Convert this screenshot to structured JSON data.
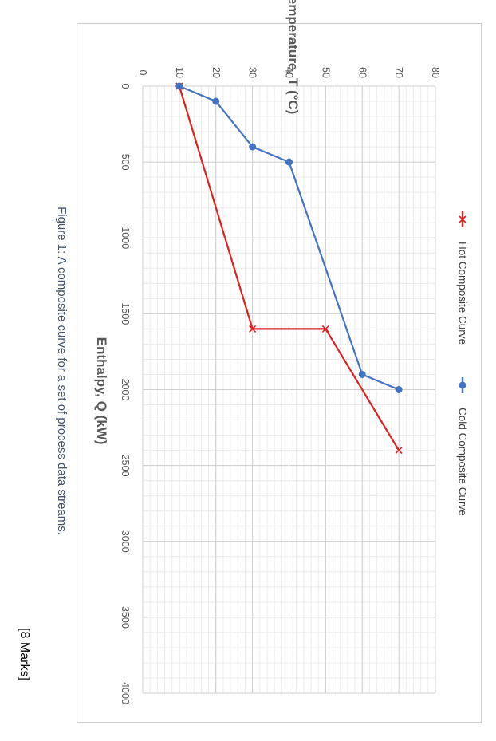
{
  "chart_data": {
    "type": "line",
    "xlabel": "Enthalpy, Q (kW)",
    "ylabel": "Temperature, T (°C)",
    "xlim": [
      0,
      4000
    ],
    "ylim": [
      0,
      80
    ],
    "x_ticks": [
      "0",
      "500",
      "1000",
      "1500",
      "2000",
      "2500",
      "3000",
      "3500",
      "4000"
    ],
    "y_ticks": [
      "0",
      "10",
      "20",
      "30",
      "40",
      "50",
      "60",
      "70",
      "80"
    ],
    "grid": true,
    "legend_position": "top",
    "orientation": "rotated 90° clockwise",
    "series": [
      {
        "name": "Hot Composite Curve",
        "color": "#e02020",
        "marker": "x",
        "points": [
          [
            0,
            10
          ],
          [
            1600,
            30
          ],
          [
            1600,
            50
          ],
          [
            2400,
            70
          ]
        ]
      },
      {
        "name": "Cold Composite Curve",
        "color": "#4472c4",
        "marker": "circle",
        "points": [
          [
            0,
            10
          ],
          [
            100,
            20
          ],
          [
            400,
            30
          ],
          [
            500,
            40
          ],
          [
            1900,
            60
          ],
          [
            2000,
            70
          ]
        ]
      }
    ]
  },
  "caption": "Figure 1: A composite curve for a set of process data streams.",
  "marks": "[8 Marks]"
}
